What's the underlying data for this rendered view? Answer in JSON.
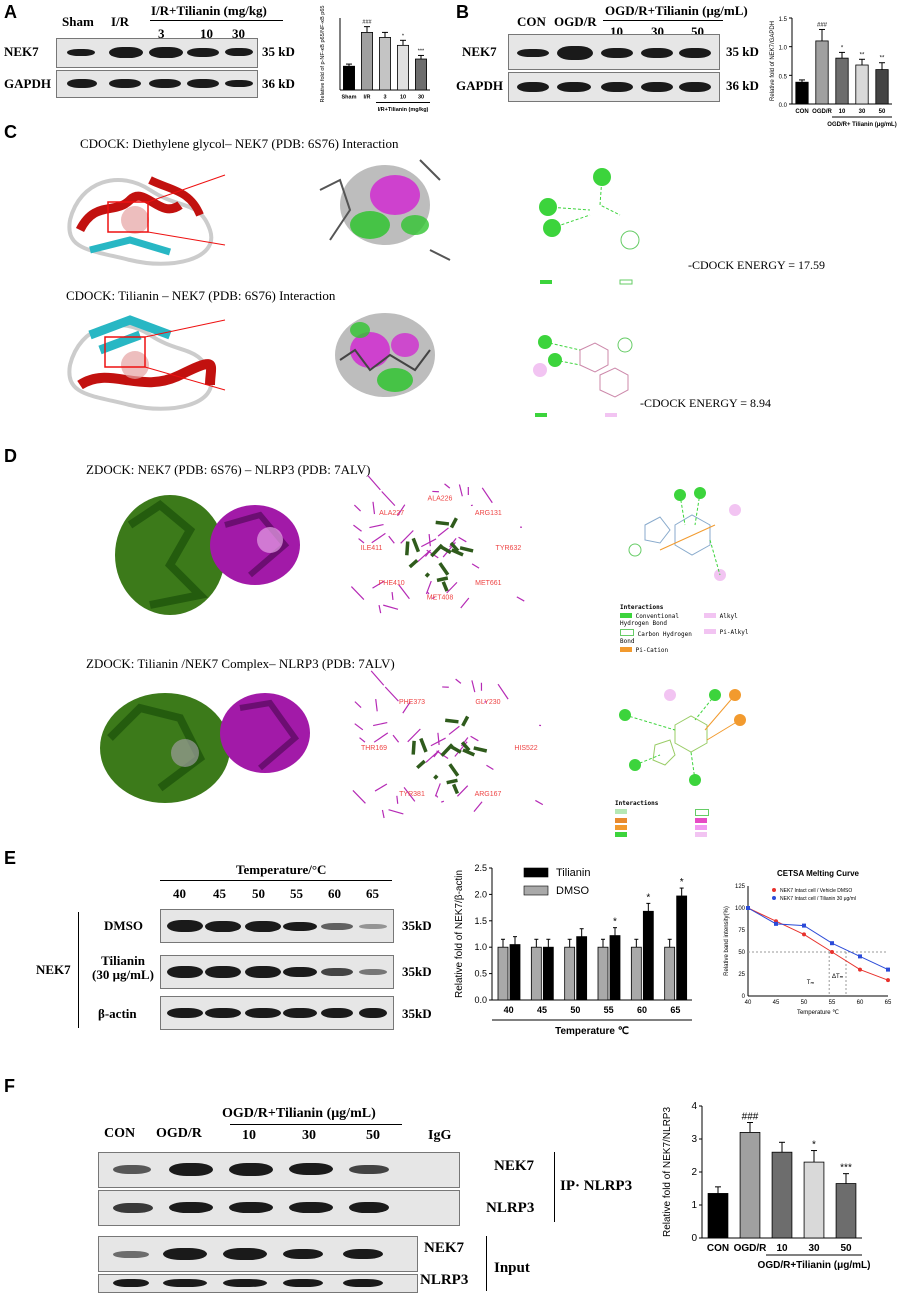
{
  "panels": {
    "a": "A",
    "b": "B",
    "c": "C",
    "d": "D",
    "e": "E",
    "f": "F"
  },
  "panelA": {
    "groups": [
      "Sham",
      "I/R"
    ],
    "treatment_header": "I/R+Tilianin (mg/kg)",
    "doses": [
      "3",
      "10",
      "30"
    ],
    "rows": [
      {
        "name": "NEK7",
        "kd": "35 kD"
      },
      {
        "name": "GAPDH",
        "kd": "36 kD"
      }
    ],
    "chart_data": {
      "type": "bar",
      "categories": [
        "Sham",
        "I/R",
        "3",
        "10",
        "30"
      ],
      "values": [
        0.33,
        0.8,
        0.73,
        0.62,
        0.43
      ],
      "errors": [
        0.03,
        0.08,
        0.07,
        0.07,
        0.05
      ],
      "significance": [
        "",
        "###",
        "",
        "*",
        "***"
      ],
      "ylabel": "Relative fold of p-NF-κB p65/NF-κB p65",
      "xlabel": "I/R+Tilianin (mg/kg)",
      "ylim": [
        0,
        1.0
      ],
      "yticks": []
    }
  },
  "panelB": {
    "groups": [
      "CON",
      "OGD/R"
    ],
    "treatment_header": "OGD/R+Tilianin (μg/mL)",
    "doses": [
      "10",
      "30",
      "50"
    ],
    "rows": [
      {
        "name": "NEK7",
        "kd": "35 kD"
      },
      {
        "name": "GAPDH",
        "kd": "36 kD"
      }
    ],
    "chart_data": {
      "type": "bar",
      "categories": [
        "CON",
        "OGD/R",
        "10",
        "30",
        "50"
      ],
      "values": [
        0.38,
        1.1,
        0.8,
        0.68,
        0.6
      ],
      "errors": [
        0.04,
        0.2,
        0.1,
        0.1,
        0.12
      ],
      "significance": [
        "",
        "###",
        "*",
        "**",
        "**"
      ],
      "ylabel": "Relative fold of NEK7/GAPDH",
      "xlabel": "OGD/R+ Tilianin (μg/mL)",
      "ylim": [
        0,
        1.5
      ],
      "yticks": [
        "0.0",
        "0.5",
        "1.0",
        "1.5"
      ]
    }
  },
  "panelC": {
    "title1": "CDOCK: Diethylene glycol– NEK7 (PDB: 6S76) Interaction",
    "title2": "CDOCK: Tilianin – NEK7 (PDB: 6S76) Interaction",
    "energy1": "-CDOCK ENERGY = 17.59",
    "energy2": "-CDOCK ENERGY = 8.94"
  },
  "panelD": {
    "title1": "ZDOCK: NEK7 (PDB: 6S76) – NLRP3 (PDB: 7ALV)",
    "title2": "ZDOCK: Tilianin /NEK7 Complex– NLRP3 (PDB: 7ALV)",
    "interactions_header": "Interactions",
    "legend1": [
      "Conventional Hydrogen Bond",
      "Carbon Hydrogen Bond",
      "Pi-Cation",
      "Alkyl",
      "Pi-Alkyl"
    ],
    "residues1": [
      "TYR632",
      "MET661",
      "MET408",
      "PHE410",
      "ILE411",
      "ALA227",
      "ALA226",
      "ARG131"
    ],
    "residues2": [
      "HIS522",
      "ARG167",
      "TYR381",
      "THR169",
      "PHE373",
      "GLY230"
    ]
  },
  "panelE": {
    "temperature_header": "Temperature/°C",
    "temps": [
      "40",
      "45",
      "50",
      "55",
      "60",
      "65"
    ],
    "rows": [
      {
        "name": "DMSO",
        "kd": "35kD"
      },
      {
        "name": "Tilianin\n(30 μg/mL)",
        "kd": "35kD"
      },
      {
        "name": "β-actin",
        "kd": "35kD"
      }
    ],
    "row_group": "NEK7",
    "chart_data": {
      "type": "bar",
      "categories": [
        "40",
        "45",
        "50",
        "55",
        "60",
        "65"
      ],
      "series": [
        {
          "name": "Tilianin",
          "values": [
            1.05,
            1.0,
            1.2,
            1.22,
            1.68,
            1.97
          ],
          "color": "#000000"
        },
        {
          "name": "DMSO",
          "values": [
            1.0,
            1.0,
            1.0,
            1.0,
            1.0,
            1.0
          ],
          "color": "#a9a9a9"
        }
      ],
      "significance": [
        "",
        "",
        "",
        "*",
        "*",
        "*"
      ],
      "ylabel": "Relative fold of NEK7/β-actin",
      "xlabel": "Temperature ℃",
      "ylim": [
        0,
        2.5
      ],
      "yticks": [
        "0.0",
        "0.5",
        "1.0",
        "1.5",
        "2.0",
        "2.5"
      ]
    },
    "melting": {
      "type": "line",
      "title": "CETSA Melting Curve",
      "x": [
        40,
        45,
        50,
        55,
        60,
        65
      ],
      "series": [
        {
          "name": "NEK7 Intact cell / Vehicle DMSO",
          "values": [
            100,
            85,
            70,
            50,
            30,
            18
          ],
          "color": "#e8322d"
        },
        {
          "name": "NEK7 Intact cell / Tilianin 30 μg/ml",
          "values": [
            100,
            82,
            80,
            60,
            45,
            30
          ],
          "color": "#2b4bd8"
        }
      ],
      "ylabel": "Relative band intensity(%)",
      "xlabel": "Temperature ℃",
      "xticks": [
        "40",
        "45",
        "50",
        "55",
        "60",
        "65"
      ],
      "yticks": [
        "0",
        "25",
        "50",
        "75",
        "100",
        "125"
      ],
      "tm_label": "Tₘ",
      "delta_label": "ΔTₘ"
    }
  },
  "panelF": {
    "lanes": [
      "CON",
      "OGD/R"
    ],
    "treatment_header": "OGD/R+Tilianin (μg/mL)",
    "doses": [
      "10",
      "30",
      "50"
    ],
    "igg": "IgG",
    "ip_rows": [
      "NEK7",
      "NLRP3"
    ],
    "input_rows": [
      "NEK7",
      "NLRP3"
    ],
    "ip_label": "IP· NLRP3",
    "input_label": "Input",
    "chart_data": {
      "type": "bar",
      "categories": [
        "CON",
        "OGD/R",
        "10",
        "30",
        "50"
      ],
      "values": [
        1.35,
        3.2,
        2.6,
        2.3,
        1.65
      ],
      "errors": [
        0.2,
        0.3,
        0.3,
        0.35,
        0.3
      ],
      "significance": [
        "",
        "###",
        "",
        "*",
        "***"
      ],
      "ylabel": "Relative fold of NEK7/NLRP3",
      "xlabel": "OGD/R+Tilianin (μg/mL)",
      "ylim": [
        0,
        4
      ],
      "yticks": [
        "0",
        "1",
        "2",
        "3",
        "4"
      ]
    }
  }
}
